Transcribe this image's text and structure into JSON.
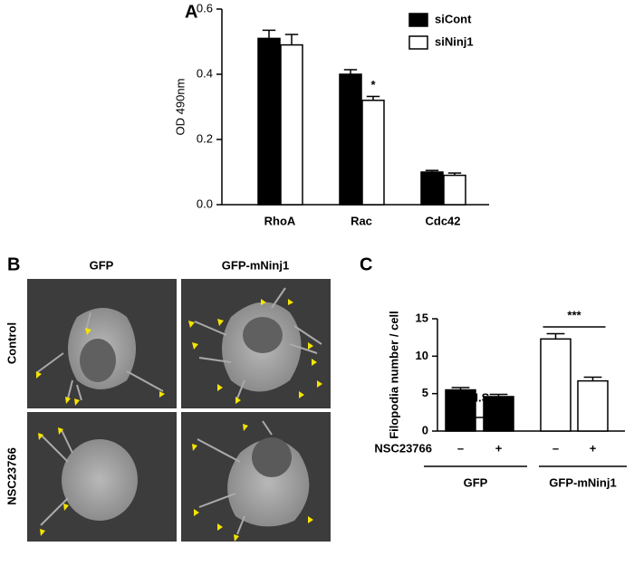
{
  "chart_data": [
    {
      "type": "bar",
      "panel": "A",
      "ylabel": "OD 490nm",
      "categories": [
        "RhoA",
        "Rac",
        "Cdc42"
      ],
      "series": [
        {
          "name": "siCont",
          "color": "#000000",
          "values": [
            0.51,
            0.4,
            0.1
          ],
          "errors": [
            0.025,
            0.014,
            0.005
          ]
        },
        {
          "name": "siNinj1",
          "color": "#ffffff",
          "values": [
            0.49,
            0.32,
            0.09
          ],
          "errors": [
            0.032,
            0.012,
            0.007
          ]
        }
      ],
      "ylim": [
        0,
        0.6
      ],
      "yticks": [
        {
          "value": 0,
          "label": "0.0"
        },
        0.2,
        0.4,
        0.6
      ],
      "annotation": "*"
    },
    {
      "type": "bar",
      "panel": "C",
      "ylabel": "Filopodia number / cell",
      "categories": [
        "–",
        "+",
        "–",
        "+"
      ],
      "series": [
        {
          "colors": [
            "#000000",
            "#000000",
            "#ffffff",
            "#ffffff"
          ],
          "values": [
            5.5,
            4.6,
            12.3,
            6.7
          ],
          "errors": [
            0.3,
            0.3,
            0.7,
            0.5
          ]
        }
      ],
      "ylim": [
        0,
        15
      ],
      "yticks": [
        0,
        5,
        10,
        15
      ],
      "row_label": "NSC23766",
      "groups": [
        "GFP",
        "GFP-mNinj1"
      ],
      "annotations": [
        "N.S",
        "***"
      ]
    }
  ],
  "panel_b": {
    "label": "B",
    "columns": [
      "GFP",
      "GFP-mNinj1"
    ],
    "rows": [
      "Control",
      "NSC23766"
    ]
  }
}
